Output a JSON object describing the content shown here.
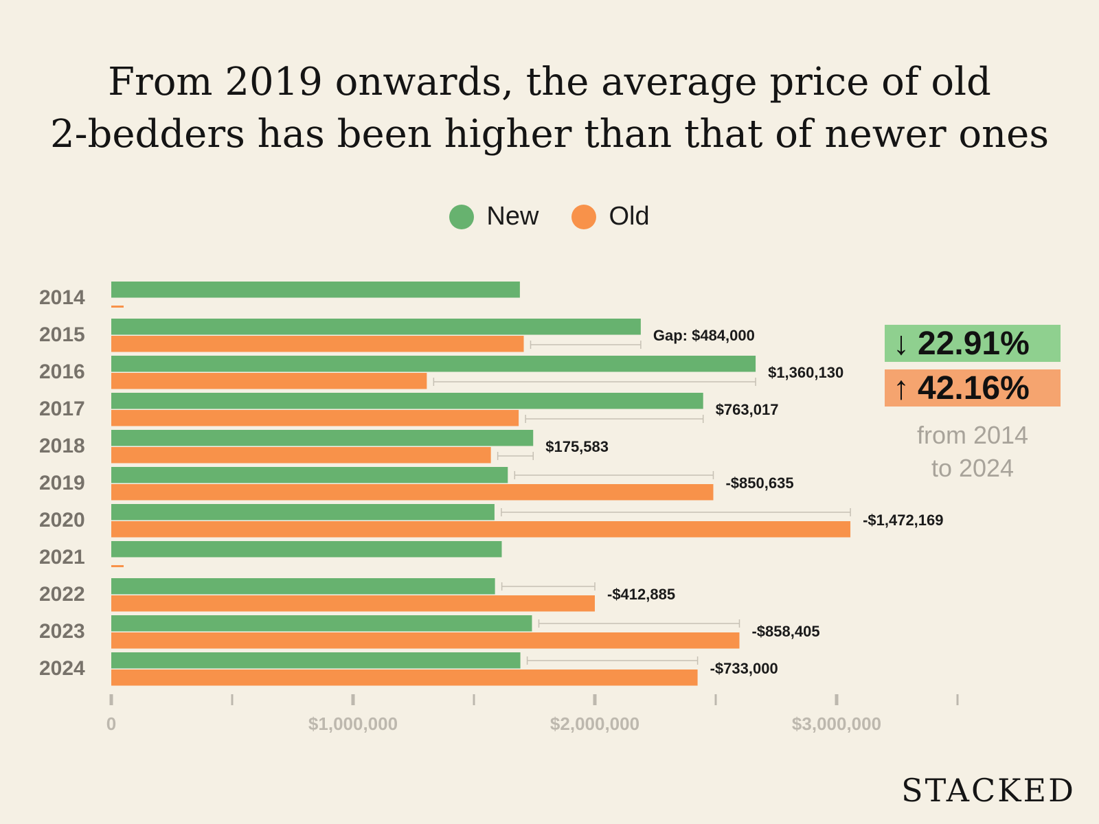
{
  "page": {
    "title_line1": "From 2019 onwards, the average price of old",
    "title_line2": "2-bedders has been higher than that of newer ones",
    "brand": "STACKED"
  },
  "colors": {
    "new": "#67b26f",
    "old": "#f8924a",
    "background": "#f5f0e4",
    "up_bg": "#f5a46f",
    "down_bg": "#8fd08f"
  },
  "legend": {
    "new_label": "New",
    "old_label": "Old"
  },
  "callouts": {
    "down_arrow": "↓",
    "down_value": "22.91%",
    "up_arrow": "↑",
    "up_value": "42.16%",
    "caption_line1": "from 2014",
    "caption_line2": "to 2024"
  },
  "chart_data": {
    "type": "bar",
    "orientation": "horizontal",
    "title": "From 2019 onwards, the average price of old 2-bedders has been higher than that of newer ones",
    "categories": [
      "2014",
      "2015",
      "2016",
      "2017",
      "2018",
      "2019",
      "2020",
      "2021",
      "2022",
      "2023",
      "2024"
    ],
    "series": [
      {
        "name": "New",
        "values": [
          1690000,
          2190000,
          2665000,
          2448000,
          1745000,
          1640000,
          1585000,
          1615000,
          1587000,
          1740000,
          1692000
        ]
      },
      {
        "name": "Old",
        "values": [
          50000,
          1706000,
          1305000,
          1685000,
          1570000,
          2490000,
          3057000,
          50000,
          2000000,
          2598000,
          2425000
        ]
      }
    ],
    "gap_labels": [
      "",
      "Gap: $484,000",
      "$1,360,130",
      "$763,017",
      "$175,583",
      "-$850,635",
      "-$1,472,169",
      "",
      "-$412,885",
      "-$858,405",
      "-$733,000"
    ],
    "x_ticks": [
      0,
      1000000,
      2000000,
      3000000
    ],
    "x_tick_labels": [
      "0",
      "$1,000,000",
      "$2,000,000",
      "$3,000,000"
    ],
    "xlim": [
      0,
      3500000
    ],
    "xlabel": "",
    "ylabel": "",
    "legend": "top-center",
    "grid": false
  }
}
